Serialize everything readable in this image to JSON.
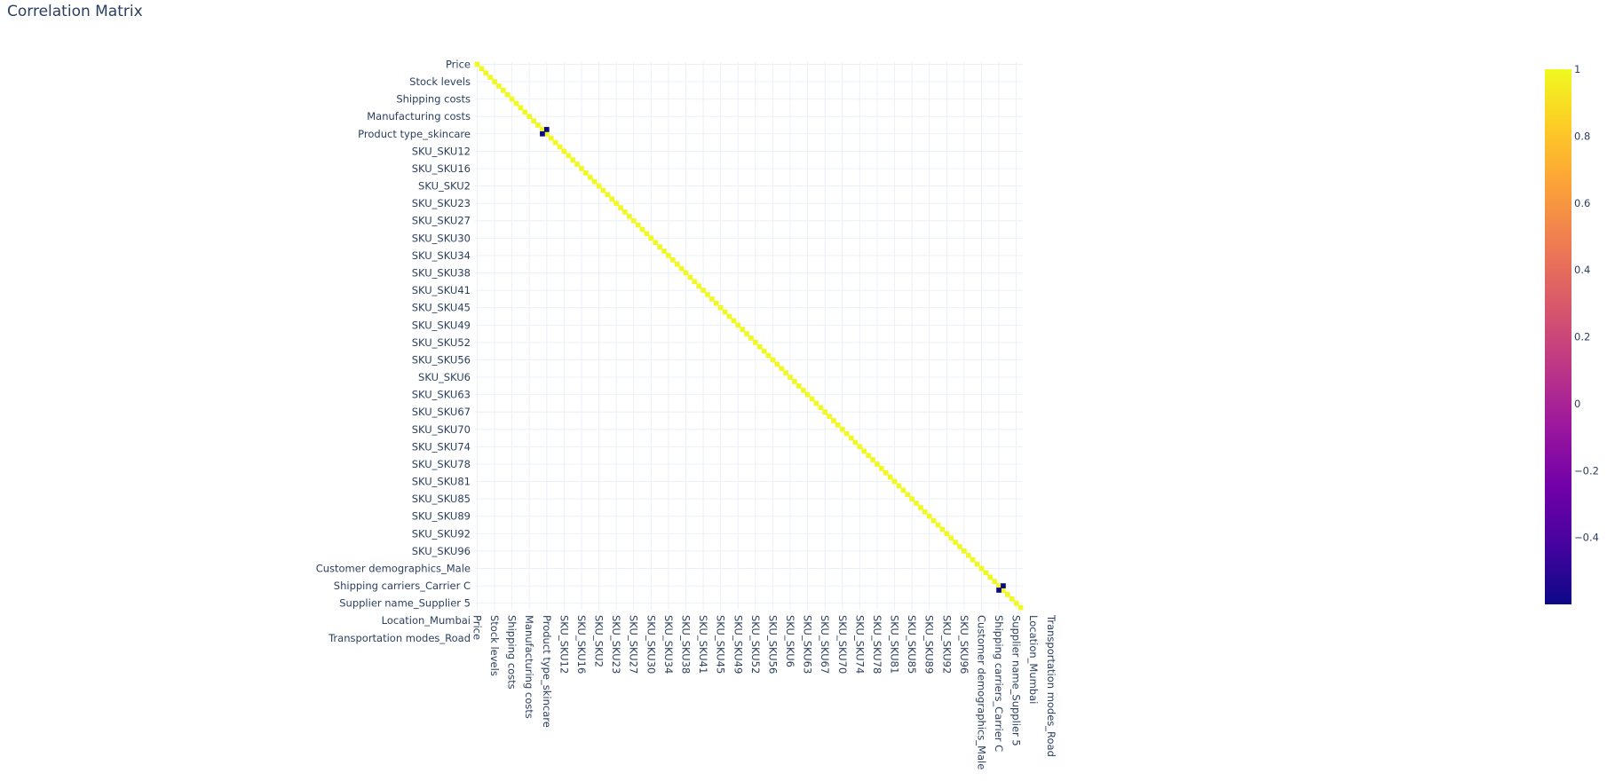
{
  "chart_data": {
    "type": "heatmap",
    "title": "Correlation Matrix",
    "variables_count": 126,
    "tick_labels": [
      "Price",
      "Stock levels",
      "Shipping costs",
      "Manufacturing costs",
      "Product type_skincare",
      "SKU_SKU12",
      "SKU_SKU16",
      "SKU_SKU2",
      "SKU_SKU23",
      "SKU_SKU27",
      "SKU_SKU30",
      "SKU_SKU34",
      "SKU_SKU38",
      "SKU_SKU41",
      "SKU_SKU45",
      "SKU_SKU49",
      "SKU_SKU52",
      "SKU_SKU56",
      "SKU_SKU6",
      "SKU_SKU63",
      "SKU_SKU67",
      "SKU_SKU70",
      "SKU_SKU74",
      "SKU_SKU78",
      "SKU_SKU81",
      "SKU_SKU85",
      "SKU_SKU89",
      "SKU_SKU92",
      "SKU_SKU96",
      "Customer demographics_Male",
      "Shipping carriers_Carrier C",
      "Supplier name_Supplier 5",
      "Location_Mumbai",
      "Transportation modes_Road"
    ],
    "tick_positions": [
      0,
      4,
      8,
      12,
      16,
      20,
      24,
      28,
      32,
      36,
      40,
      44,
      48,
      52,
      56,
      60,
      64,
      68,
      72,
      76,
      80,
      84,
      88,
      92,
      96,
      100,
      104,
      108,
      112,
      116,
      120,
      124,
      128,
      132
    ],
    "diagonal_value": 1,
    "off_diagonal_cells": [
      {
        "row": 15,
        "col": 16,
        "value": -0.6
      },
      {
        "row": 16,
        "col": 15,
        "value": -0.6
      },
      {
        "row": 120,
        "col": 121,
        "value": -0.6
      },
      {
        "row": 121,
        "col": 120,
        "value": -0.6
      }
    ],
    "colorscale": [
      "#0d0887",
      "#46039f",
      "#7201a8",
      "#9c179e",
      "#bd3786",
      "#d8576b",
      "#ed7953",
      "#fb9f3a",
      "#fdca26",
      "#f0f921"
    ],
    "zmin": -0.6,
    "zmax": 1,
    "colorbar_ticks": [
      {
        "value": 1,
        "label": "1"
      },
      {
        "value": 0.8,
        "label": "0.8"
      },
      {
        "value": 0.6,
        "label": "0.6"
      },
      {
        "value": 0.4,
        "label": "0.4"
      },
      {
        "value": 0.2,
        "label": "0.2"
      },
      {
        "value": 0,
        "label": "0"
      },
      {
        "value": -0.2,
        "label": "−0.2"
      },
      {
        "value": -0.4,
        "label": "−0.4"
      }
    ],
    "grid": true,
    "background": "#ffffff",
    "grid_color": "#ebf0f8"
  }
}
